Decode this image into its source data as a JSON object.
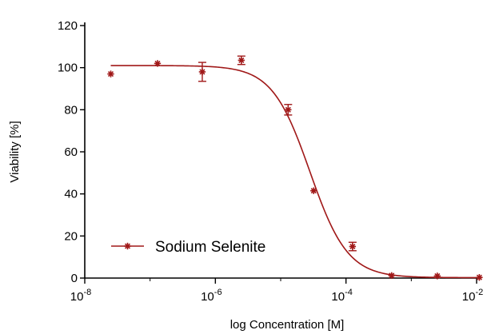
{
  "chart_data": {
    "type": "scatter",
    "title": "",
    "xlabel": "log Concentration [M]",
    "ylabel": "Viability [%]",
    "x_scale": "log10",
    "xlim": [
      1e-08,
      0.01
    ],
    "ylim": [
      0,
      120
    ],
    "x_ticks": [
      {
        "base": "10",
        "exp": "-8"
      },
      {
        "base": "10",
        "exp": "-6"
      },
      {
        "base": "10",
        "exp": "-4"
      },
      {
        "base": "10",
        "exp": "-2"
      }
    ],
    "y_ticks": [
      "0",
      "20",
      "40",
      "60",
      "80",
      "100",
      "120"
    ],
    "grid": false,
    "legend_position": "bottom-left",
    "color": "#a01818",
    "series": [
      {
        "name": "Sodium Selenite",
        "marker": "asterisk",
        "points": [
          {
            "x": 2.5e-08,
            "y": 97,
            "err": 0
          },
          {
            "x": 1.3e-07,
            "y": 102,
            "err": 0
          },
          {
            "x": 6.3e-07,
            "y": 98,
            "err": 4.5
          },
          {
            "x": 2.5e-06,
            "y": 103.5,
            "err": 2
          },
          {
            "x": 1.3e-05,
            "y": 80,
            "err": 2.5
          },
          {
            "x": 3.2e-05,
            "y": 41.5,
            "err": 0
          },
          {
            "x": 0.000126,
            "y": 15,
            "err": 2
          },
          {
            "x": 0.0005,
            "y": 1.2,
            "err": 0
          },
          {
            "x": 0.0025,
            "y": 1,
            "err": 0
          },
          {
            "x": 0.011,
            "y": 0.3,
            "err": 0
          }
        ],
        "fit": {
          "model": "four-parameter logistic",
          "top": 101,
          "bottom": 0.2,
          "ec50": 2.8e-05,
          "hill": 1.5,
          "x_range": [
            2.5e-08,
            0.012
          ]
        }
      }
    ]
  }
}
